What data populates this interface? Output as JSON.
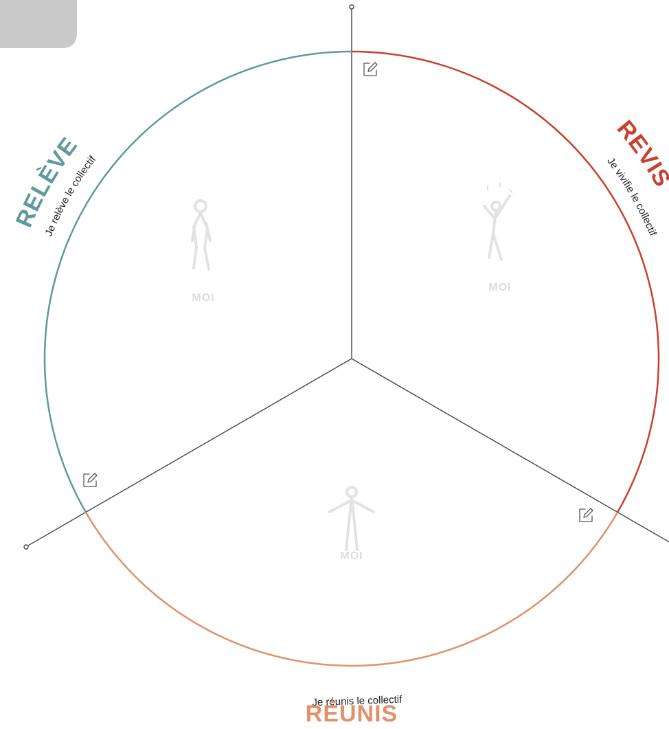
{
  "segments": [
    {
      "title": "RELÈVE",
      "subtitle": "Je relève le collectif"
    },
    {
      "title": "REVIS",
      "subtitle": "Je vivifie le collectif"
    },
    {
      "title": "RÉUNIS",
      "subtitle": "Je réunis le collectif"
    }
  ],
  "figures": [
    {
      "label": "MOI"
    },
    {
      "label": "MOI"
    },
    {
      "label": "MOI"
    }
  ]
}
